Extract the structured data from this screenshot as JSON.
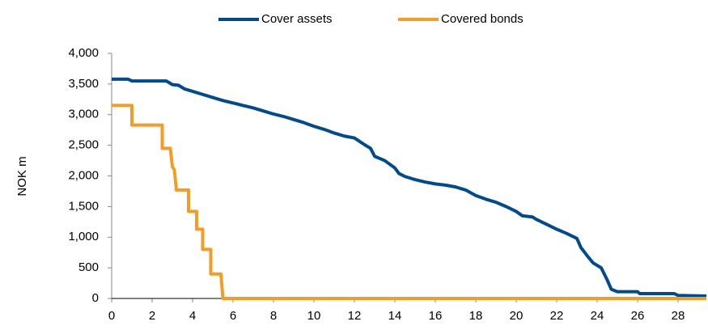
{
  "chart_data": {
    "type": "line",
    "y_label": "NOK m",
    "xlim": [
      0,
      29.4
    ],
    "xticks": [
      0,
      2,
      4,
      6,
      8,
      10,
      12,
      14,
      16,
      18,
      20,
      22,
      24,
      26,
      28
    ],
    "ylim": [
      0,
      4000
    ],
    "yticks": [
      0,
      500,
      {
        "value": 1000,
        "label": "1,000"
      },
      {
        "value": 1500,
        "label": "1,500"
      },
      {
        "value": 2000,
        "label": "2,000"
      },
      {
        "value": 2500,
        "label": "2,500"
      },
      {
        "value": 3000,
        "label": "3,000"
      },
      {
        "value": 3500,
        "label": "3,500"
      },
      {
        "value": 4000,
        "label": "4,000"
      }
    ],
    "legend": "top",
    "series": [
      {
        "name": "Cover assets",
        "color": "#004b8d",
        "x": [
          0,
          0.8,
          1,
          2.7,
          3,
          3.3,
          3.6,
          4,
          4.5,
          5,
          5.5,
          6,
          6.5,
          7,
          7.5,
          8,
          8.5,
          9,
          9.5,
          10,
          10.5,
          11,
          11.5,
          12,
          12.5,
          12.8,
          13,
          13.5,
          14,
          14.2,
          14.5,
          15,
          15.5,
          16,
          16.5,
          17,
          17.5,
          18,
          18.5,
          19,
          19.5,
          20,
          20.3,
          20.8,
          21,
          21.5,
          22,
          22.5,
          23,
          23.2,
          23.5,
          23.8,
          24.2,
          24.5,
          24.7,
          25,
          26,
          26.1,
          27.8,
          28,
          29.4
        ],
        "values": [
          3580,
          3580,
          3550,
          3550,
          3490,
          3480,
          3420,
          3380,
          3330,
          3280,
          3230,
          3190,
          3150,
          3110,
          3060,
          3010,
          2970,
          2920,
          2870,
          2810,
          2760,
          2700,
          2650,
          2620,
          2510,
          2450,
          2320,
          2250,
          2130,
          2040,
          1990,
          1940,
          1900,
          1870,
          1850,
          1820,
          1770,
          1680,
          1620,
          1570,
          1500,
          1420,
          1350,
          1330,
          1290,
          1210,
          1130,
          1060,
          980,
          830,
          700,
          580,
          500,
          300,
          150,
          110,
          110,
          80,
          80,
          50,
          40
        ]
      },
      {
        "name": "Covered bonds",
        "color": "#f39c26",
        "x": [
          0,
          1,
          1,
          2.5,
          2.5,
          2.9,
          3,
          3.1,
          3.2,
          3.8,
          3.8,
          4.2,
          4.2,
          4.5,
          4.5,
          4.9,
          4.9,
          5.4,
          5.5,
          29.4
        ],
        "values": [
          3150,
          3150,
          2830,
          2830,
          2450,
          2450,
          2150,
          2100,
          1770,
          1770,
          1420,
          1420,
          1130,
          1130,
          800,
          800,
          400,
          400,
          0,
          0
        ]
      }
    ]
  }
}
